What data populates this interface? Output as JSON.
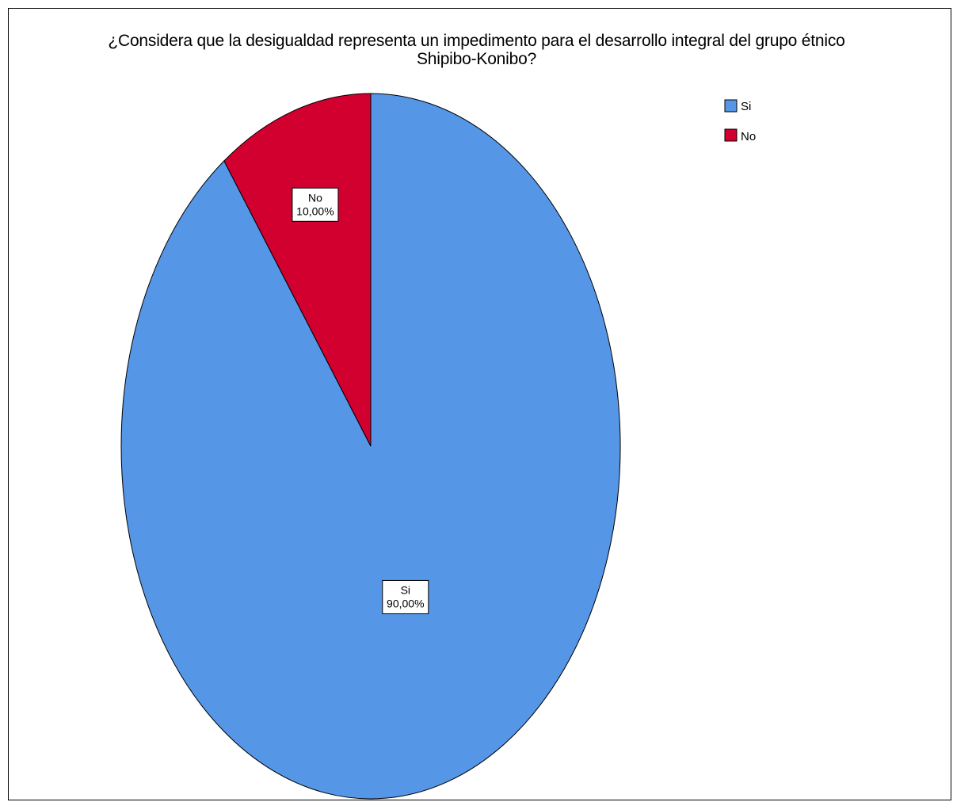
{
  "chart_data": {
    "type": "pie",
    "title_lines": [
      "¿Considera que la desigualdad representa un impedimento para el desarrollo integral del grupo étnico",
      "Shipibo-Konibo?"
    ],
    "slices": [
      {
        "label": "Si",
        "value": 90.0,
        "display": "90,00%",
        "color": "#5596e6"
      },
      {
        "label": "No",
        "value": 10.0,
        "display": "10,00%",
        "color": "#d1002e"
      }
    ],
    "legend": {
      "position": "top-right",
      "items": [
        "Si",
        "No"
      ]
    }
  }
}
